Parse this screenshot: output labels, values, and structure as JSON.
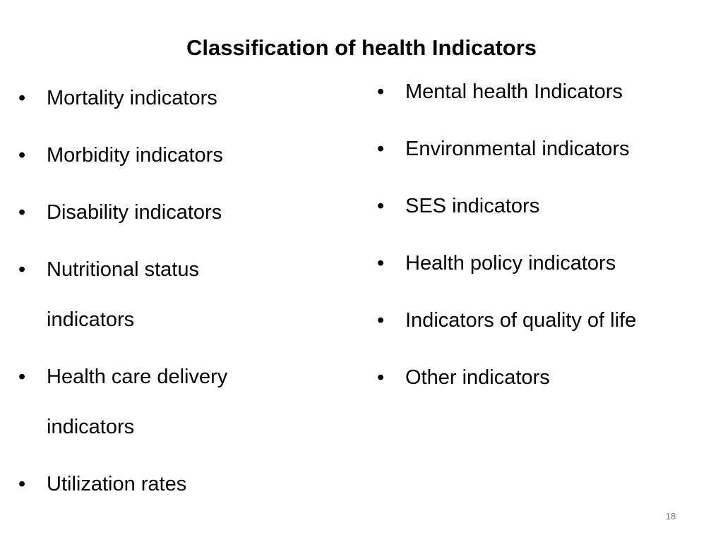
{
  "title": "Classification of health Indicators",
  "left_column": [
    "Mortality indicators",
    "Morbidity indicators",
    "Disability indicators",
    "Nutritional status indicators",
    "Health care delivery indicators",
    "Utilization rates"
  ],
  "right_column": [
    "Mental health Indicators",
    "Environmental indicators",
    "SES indicators",
    "Health policy indicators",
    "Indicators of quality of life",
    "Other indicators"
  ],
  "page_number": 18
}
